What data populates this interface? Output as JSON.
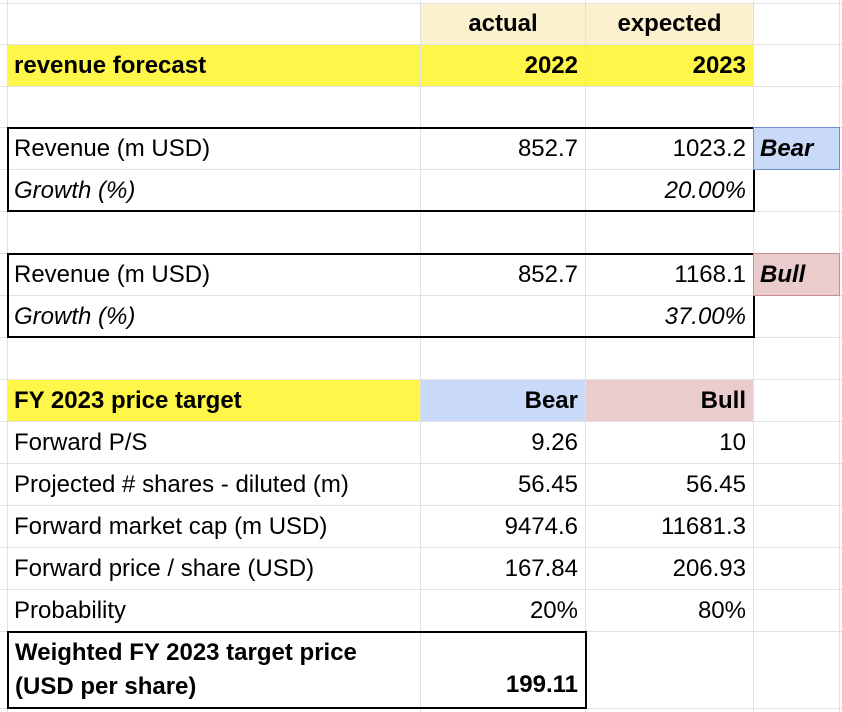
{
  "header": {
    "col1_top": "actual",
    "col2_top": "expected",
    "title": "revenue forecast",
    "col1_year": "2022",
    "col2_year": "2023"
  },
  "bear_scenario": {
    "revenue_label": "Revenue (m USD)",
    "revenue_2022": "852.7",
    "revenue_2023": "1023.2",
    "tag": "Bear",
    "growth_label": "Growth (%)",
    "growth_2023": "20.00%"
  },
  "bull_scenario": {
    "revenue_label": "Revenue (m USD)",
    "revenue_2022": "852.7",
    "revenue_2023": "1168.1",
    "tag": "Bull",
    "growth_label": "Growth (%)",
    "growth_2023": "37.00%"
  },
  "price_target": {
    "title": "FY 2023 price target",
    "col_bear": "Bear",
    "col_bull": "Bull",
    "rows": [
      {
        "label": "Forward P/S",
        "bear": "9.26",
        "bull": "10"
      },
      {
        "label": "Projected # shares - diluted (m)",
        "bear": "56.45",
        "bull": "56.45"
      },
      {
        "label": "Forward market cap (m USD)",
        "bear": "9474.6",
        "bull": "11681.3"
      },
      {
        "label": "Forward price / share (USD)",
        "bear": "167.84",
        "bull": "206.93"
      },
      {
        "label": "Probability",
        "bear": "20%",
        "bull": "80%"
      }
    ],
    "weighted_label_line1": "Weighted FY 2023 target price",
    "weighted_label_line2": "(USD per share)",
    "weighted_value": "199.11"
  },
  "colors": {
    "highlight_yellow": "#fff64a",
    "header_beige": "#fcf1ce",
    "bear_blue": "#c9daf8",
    "bull_pink": "#eacccc",
    "gridline": "#e1e1e1"
  }
}
